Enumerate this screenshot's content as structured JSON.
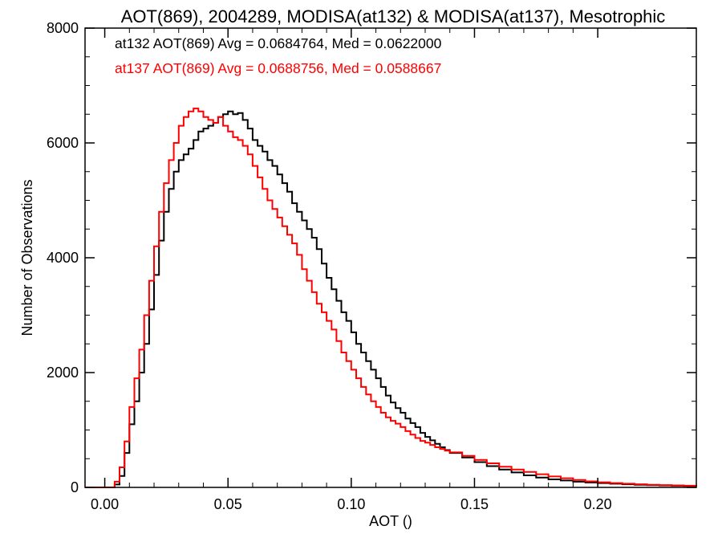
{
  "chart_data": {
    "type": "line",
    "style": "histogram-step",
    "title": "AOT(869), 2004289, MODISA(at132) & MODISA(at137), Mesotrophic",
    "xlabel": "AOT ()",
    "ylabel": "Number of Observations",
    "xlim": [
      -0.008,
      0.24
    ],
    "ylim": [
      0,
      8000
    ],
    "xticks": [
      0.0,
      0.05,
      0.1,
      0.15,
      0.2
    ],
    "xtick_labels": [
      "0.00",
      "0.05",
      "0.10",
      "0.15",
      "0.20"
    ],
    "yticks": [
      0,
      2000,
      4000,
      6000,
      8000
    ],
    "ytick_labels": [
      "0",
      "2000",
      "4000",
      "6000",
      "8000"
    ],
    "grid": false,
    "legend_position": "top-left",
    "annotations": [
      {
        "text": "at132 AOT(869) Avg = 0.0684764, Med = 0.0622000",
        "color": "#000000"
      },
      {
        "text": "at137 AOT(869) Avg = 0.0688756, Med = 0.0588667",
        "color": "#ff0000"
      }
    ],
    "series": [
      {
        "color": "#000000",
        "x": [
          -0.008,
          0.0,
          0.004,
          0.006,
          0.008,
          0.01,
          0.012,
          0.014,
          0.016,
          0.018,
          0.02,
          0.022,
          0.024,
          0.026,
          0.028,
          0.03,
          0.032,
          0.034,
          0.036,
          0.038,
          0.04,
          0.042,
          0.044,
          0.046,
          0.048,
          0.05,
          0.052,
          0.054,
          0.056,
          0.058,
          0.06,
          0.062,
          0.064,
          0.066,
          0.068,
          0.07,
          0.072,
          0.074,
          0.076,
          0.078,
          0.08,
          0.082,
          0.084,
          0.086,
          0.088,
          0.09,
          0.092,
          0.094,
          0.096,
          0.098,
          0.1,
          0.102,
          0.104,
          0.106,
          0.108,
          0.11,
          0.112,
          0.114,
          0.116,
          0.118,
          0.12,
          0.122,
          0.124,
          0.126,
          0.128,
          0.13,
          0.132,
          0.134,
          0.136,
          0.138,
          0.14,
          0.145,
          0.15,
          0.155,
          0.16,
          0.165,
          0.17,
          0.175,
          0.18,
          0.185,
          0.19,
          0.195,
          0.2,
          0.205,
          0.21,
          0.215,
          0.22,
          0.225,
          0.23,
          0.235,
          0.24
        ],
        "y": [
          0,
          0,
          50,
          200,
          600,
          1100,
          1500,
          2000,
          2500,
          3100,
          3700,
          4300,
          4800,
          5200,
          5500,
          5700,
          5800,
          5900,
          6050,
          6200,
          6250,
          6300,
          6350,
          6450,
          6500,
          6550,
          6500,
          6520,
          6400,
          6250,
          6050,
          5950,
          5850,
          5700,
          5600,
          5450,
          5300,
          5150,
          4950,
          4800,
          4650,
          4500,
          4350,
          4150,
          3900,
          3650,
          3450,
          3250,
          3050,
          2900,
          2700,
          2500,
          2350,
          2200,
          2050,
          1900,
          1750,
          1600,
          1480,
          1380,
          1300,
          1200,
          1120,
          1050,
          950,
          880,
          820,
          760,
          700,
          650,
          600,
          520,
          440,
          370,
          310,
          260,
          210,
          170,
          140,
          120,
          100,
          85,
          75,
          65,
          55,
          45,
          40,
          35,
          30,
          25,
          20
        ]
      },
      {
        "color": "#ff0000",
        "x": [
          -0.008,
          0.0,
          0.004,
          0.006,
          0.008,
          0.01,
          0.012,
          0.014,
          0.016,
          0.018,
          0.02,
          0.022,
          0.024,
          0.026,
          0.028,
          0.03,
          0.032,
          0.034,
          0.036,
          0.038,
          0.04,
          0.042,
          0.044,
          0.046,
          0.048,
          0.05,
          0.052,
          0.054,
          0.056,
          0.058,
          0.06,
          0.062,
          0.064,
          0.066,
          0.068,
          0.07,
          0.072,
          0.074,
          0.076,
          0.078,
          0.08,
          0.082,
          0.084,
          0.086,
          0.088,
          0.09,
          0.092,
          0.094,
          0.096,
          0.098,
          0.1,
          0.102,
          0.104,
          0.106,
          0.108,
          0.11,
          0.112,
          0.114,
          0.116,
          0.118,
          0.12,
          0.122,
          0.124,
          0.126,
          0.128,
          0.13,
          0.132,
          0.134,
          0.136,
          0.138,
          0.14,
          0.145,
          0.15,
          0.155,
          0.16,
          0.165,
          0.17,
          0.175,
          0.18,
          0.185,
          0.19,
          0.195,
          0.2,
          0.205,
          0.21,
          0.215,
          0.22,
          0.225,
          0.23,
          0.235,
          0.24
        ],
        "y": [
          0,
          0,
          100,
          350,
          800,
          1400,
          1900,
          2400,
          3000,
          3600,
          4200,
          4800,
          5300,
          5700,
          6000,
          6300,
          6450,
          6550,
          6600,
          6550,
          6450,
          6400,
          6350,
          6450,
          6300,
          6200,
          6100,
          6050,
          5950,
          5800,
          5600,
          5400,
          5200,
          5000,
          4850,
          4700,
          4550,
          4400,
          4250,
          4050,
          3800,
          3600,
          3400,
          3200,
          3050,
          2900,
          2750,
          2550,
          2350,
          2200,
          2050,
          1900,
          1750,
          1620,
          1500,
          1400,
          1300,
          1220,
          1160,
          1110,
          1050,
          980,
          920,
          860,
          810,
          780,
          740,
          700,
          670,
          640,
          610,
          550,
          480,
          420,
          360,
          310,
          270,
          230,
          190,
          160,
          130,
          105,
          90,
          75,
          65,
          55,
          45,
          40,
          35,
          30,
          25
        ]
      }
    ]
  }
}
